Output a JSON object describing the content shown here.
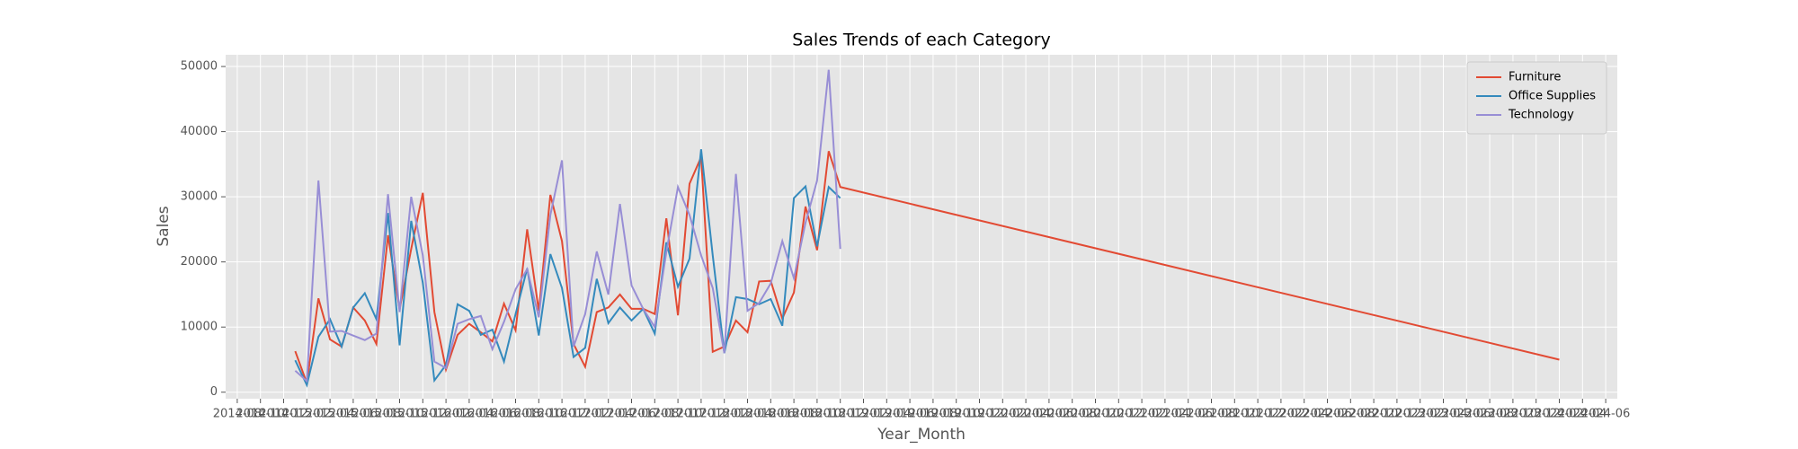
{
  "chart_data": {
    "type": "line",
    "title": "Sales Trends of each Category",
    "x_label": "Year_Month",
    "y_label": "Sales",
    "x": [
      "2015-01",
      "2015-02",
      "2015-03",
      "2015-04",
      "2015-05",
      "2015-06",
      "2015-07",
      "2015-08",
      "2015-09",
      "2015-10",
      "2015-11",
      "2015-12",
      "2016-01",
      "2016-02",
      "2016-03",
      "2016-04",
      "2016-05",
      "2016-06",
      "2016-07",
      "2016-08",
      "2016-09",
      "2016-10",
      "2016-11",
      "2016-12",
      "2017-01",
      "2017-02",
      "2017-03",
      "2017-04",
      "2017-05",
      "2017-06",
      "2017-07",
      "2017-08",
      "2017-09",
      "2017-10",
      "2017-11",
      "2017-12",
      "2018-01",
      "2018-02",
      "2018-03",
      "2018-04",
      "2018-05",
      "2018-06",
      "2018-07",
      "2018-08",
      "2018-09",
      "2018-10",
      "2018-11",
      "2018-12",
      "2024-02"
    ],
    "series": [
      {
        "name": "Furniture",
        "color": "#E24A33",
        "values": [
          6300,
          1400,
          14400,
          8100,
          7000,
          13000,
          11000,
          7400,
          24100,
          12700,
          22000,
          30600,
          12300,
          3500,
          8800,
          10500,
          9200,
          7800,
          13600,
          9500,
          25000,
          12500,
          30300,
          23200,
          7400,
          3900,
          12300,
          13000,
          15000,
          12800,
          12800,
          12000,
          26700,
          11800,
          32000,
          36100,
          6200,
          7000,
          11000,
          9200,
          17000,
          17100,
          11300,
          15300,
          28500,
          21800,
          37000,
          31500,
          5000
        ]
      },
      {
        "name": "Office Supplies",
        "color": "#348ABD",
        "values": [
          4900,
          1100,
          8500,
          11200,
          7000,
          13000,
          15200,
          11200,
          27500,
          7200,
          26300,
          16800,
          1800,
          4200,
          13500,
          12500,
          8800,
          9600,
          4700,
          12000,
          19000,
          8700,
          21200,
          16000,
          5400,
          6800,
          17400,
          10600,
          13000,
          11000,
          12800,
          9000,
          23000,
          16200,
          20500,
          37300,
          21000,
          6000,
          14600,
          14300,
          13500,
          14300,
          10200,
          29800,
          31600,
          22400,
          31500,
          29800,
          null
        ]
      },
      {
        "name": "Technology",
        "color": "#988ED5",
        "values": [
          3300,
          1700,
          32500,
          9300,
          9400,
          8700,
          8000,
          9000,
          30400,
          12300,
          30000,
          21000,
          4700,
          3700,
          10500,
          11200,
          11700,
          6600,
          10800,
          15800,
          18900,
          11500,
          27200,
          35600,
          7000,
          12000,
          21600,
          15000,
          28900,
          16400,
          12800,
          10000,
          21500,
          31500,
          27200,
          21000,
          16000,
          6000,
          33500,
          12500,
          13700,
          16700,
          23200,
          17500,
          26000,
          32500,
          49500,
          22000,
          null
        ]
      }
    ],
    "xlim": [
      "2014-07",
      "2024-07"
    ],
    "xticks": [
      "2014-08",
      "2014-10",
      "2014-12",
      "2015-02",
      "2015-04",
      "2015-06",
      "2015-08",
      "2015-10",
      "2015-12",
      "2016-02",
      "2016-04",
      "2016-06",
      "2016-08",
      "2016-10",
      "2016-12",
      "2017-02",
      "2017-04",
      "2017-06",
      "2017-08",
      "2017-10",
      "2017-12",
      "2018-02",
      "2018-04",
      "2018-06",
      "2018-08",
      "2018-10",
      "2018-12",
      "2019-02",
      "2019-04",
      "2019-06",
      "2019-08",
      "2019-10",
      "2019-12",
      "2020-02",
      "2020-04",
      "2020-06",
      "2020-08",
      "2020-10",
      "2020-12",
      "2021-02",
      "2021-04",
      "2021-06",
      "2021-08",
      "2021-10",
      "2021-12",
      "2022-02",
      "2022-04",
      "2022-06",
      "2022-08",
      "2022-10",
      "2022-12",
      "2023-02",
      "2023-04",
      "2023-06",
      "2023-08",
      "2023-10",
      "2023-12",
      "2024-02",
      "2024-04",
      "2024-06"
    ],
    "ylim": [
      -1000,
      51800
    ],
    "yticks": [
      0,
      10000,
      20000,
      30000,
      40000,
      50000
    ],
    "grid": true,
    "legend": "upper right"
  }
}
